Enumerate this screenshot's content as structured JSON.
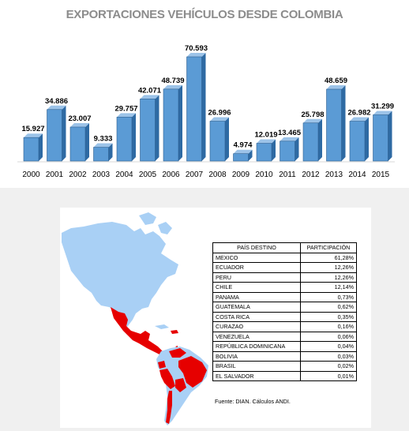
{
  "chart_data": {
    "type": "bar",
    "title": "EXPORTACIONES VEHÍCULOS DESDE COLOMBIA",
    "categories": [
      "2000",
      "2001",
      "2002",
      "2003",
      "2004",
      "2005",
      "2006",
      "2007",
      "2008",
      "2009",
      "2010",
      "2011",
      "2012",
      "2013",
      "2014",
      "2015"
    ],
    "values": [
      15927,
      34886,
      23007,
      9333,
      29757,
      42071,
      48739,
      70593,
      26996,
      4974,
      12019,
      13465,
      25798,
      48659,
      26982,
      31299
    ],
    "value_labels": [
      "15.927",
      "34.886",
      "23.007",
      "9.333",
      "29.757",
      "42.071",
      "48.739",
      "70.593",
      "26.996",
      "4.974",
      "12.019",
      "13.465",
      "25.798",
      "48.659",
      "26.982",
      "31.299"
    ],
    "xlabel": "",
    "ylabel": "",
    "ylim": [
      0,
      75000
    ],
    "grid": false,
    "bar_color": "#5b9bd5"
  },
  "table": {
    "headers": [
      "PAÍS DESTINO",
      "PARTICIPACIÓN"
    ],
    "rows": [
      [
        "MEXICO",
        "61,28%"
      ],
      [
        "ECUADOR",
        "12,26%"
      ],
      [
        "PERU",
        "12,26%"
      ],
      [
        "CHILE",
        "12,14%"
      ],
      [
        "PANAMA",
        "0,73%"
      ],
      [
        "GUATEMALA",
        "0,62%"
      ],
      [
        "COSTA RICA",
        "0,35%"
      ],
      [
        "CURAZAO",
        "0,16%"
      ],
      [
        "VENEZUELA",
        "0,06%"
      ],
      [
        "REPÚBLICA DOMINICANA",
        "0,04%"
      ],
      [
        "BOLIVIA",
        "0,03%"
      ],
      [
        "BRASIL",
        "0,02%"
      ],
      [
        "EL SALVADOR",
        "0,01%"
      ]
    ]
  },
  "source": "Fuente: DIAN. Cálculos ANDI.",
  "map": {
    "land_color": "#a9d0f5",
    "highlight_color": "#e60000",
    "highlighted_countries": [
      "MEXICO",
      "ECUADOR",
      "PERU",
      "CHILE",
      "PANAMA",
      "GUATEMALA",
      "COSTA RICA",
      "CURAZAO",
      "VENEZUELA",
      "REPÚBLICA DOMINICANA",
      "BOLIVIA",
      "BRASIL",
      "EL SALVADOR"
    ]
  }
}
